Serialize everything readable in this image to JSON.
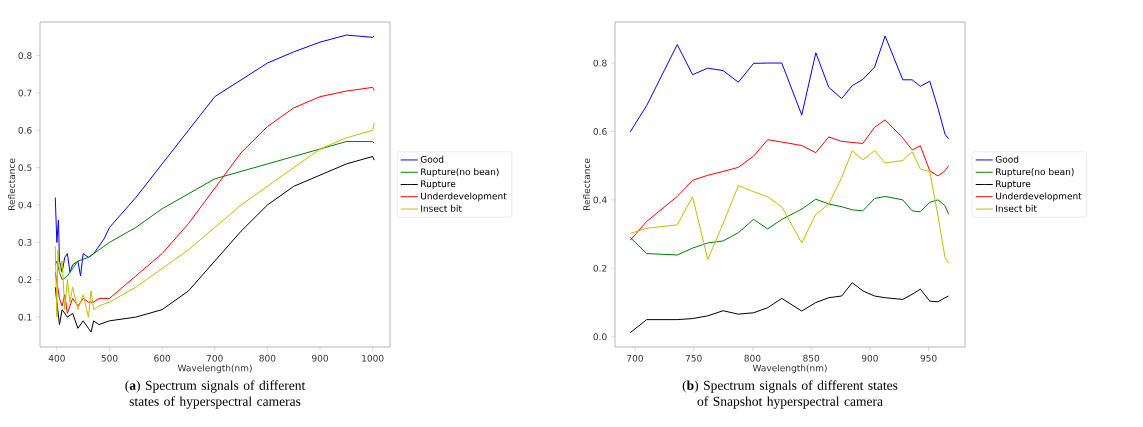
{
  "chart_data": [
    {
      "type": "line",
      "title": "(**a**) Spectrum signals of different states of hyperspectral cameras",
      "xlabel": "Wavelength(nm)",
      "ylabel": "Reflectance",
      "xlim": [
        368,
        1033
      ],
      "ylim": [
        0.02,
        0.89
      ],
      "xticks": [
        400,
        500,
        600,
        700,
        800,
        900,
        1000
      ],
      "yticks": [
        0.1,
        0.2,
        0.3,
        0.4,
        0.5,
        0.6,
        0.7,
        0.8
      ],
      "legend": "right",
      "grid": false,
      "series": [
        {
          "name": "Good",
          "color": "#0000ff",
          "x": [
            397,
            400,
            403,
            405,
            410,
            415,
            420,
            425,
            430,
            440,
            445,
            450,
            460,
            470,
            480,
            490,
            500,
            550,
            600,
            650,
            700,
            750,
            800,
            850,
            900,
            950,
            1000,
            1003
          ],
          "values": [
            0.42,
            0.3,
            0.36,
            0.25,
            0.22,
            0.26,
            0.27,
            0.22,
            0.24,
            0.25,
            0.21,
            0.27,
            0.26,
            0.27,
            0.29,
            0.31,
            0.34,
            0.42,
            0.51,
            0.6,
            0.69,
            0.735,
            0.78,
            0.81,
            0.836,
            0.855,
            0.849,
            0.853
          ]
        },
        {
          "name": "Rupture(no bean)",
          "color": "#008000",
          "x": [
            397,
            400,
            405,
            410,
            420,
            430,
            440,
            460,
            480,
            500,
            550,
            600,
            650,
            700,
            750,
            800,
            850,
            900,
            950,
            1000,
            1003
          ],
          "values": [
            0.24,
            0.25,
            0.22,
            0.2,
            0.21,
            0.23,
            0.25,
            0.26,
            0.28,
            0.3,
            0.34,
            0.39,
            0.43,
            0.47,
            0.49,
            0.51,
            0.53,
            0.55,
            0.57,
            0.57,
            0.565
          ]
        },
        {
          "name": "Rupture",
          "color": "#000000",
          "x": [
            397,
            400,
            405,
            410,
            420,
            430,
            440,
            450,
            460,
            465,
            470,
            480,
            500,
            550,
            600,
            650,
            700,
            750,
            800,
            850,
            900,
            950,
            1000,
            1003
          ],
          "values": [
            0.18,
            0.14,
            0.08,
            0.12,
            0.1,
            0.11,
            0.07,
            0.09,
            0.07,
            0.06,
            0.09,
            0.08,
            0.09,
            0.1,
            0.12,
            0.17,
            0.25,
            0.33,
            0.4,
            0.45,
            0.48,
            0.51,
            0.53,
            0.52
          ]
        },
        {
          "name": "Underdevelopment",
          "color": "#ff0000",
          "x": [
            397,
            400,
            405,
            410,
            415,
            420,
            425,
            430,
            440,
            450,
            460,
            470,
            480,
            500,
            550,
            600,
            650,
            700,
            750,
            800,
            850,
            900,
            950,
            1000,
            1003
          ],
          "values": [
            0.22,
            null,
            0.15,
            0.13,
            0.16,
            0.11,
            0.13,
            0.15,
            0.13,
            0.15,
            0.14,
            0.14,
            0.15,
            0.15,
            0.21,
            0.27,
            0.35,
            0.445,
            0.54,
            0.61,
            0.66,
            0.69,
            0.705,
            0.715,
            0.707
          ]
        },
        {
          "name": "Insect bit",
          "color": "#bfbf00",
          "x": [
            397,
            400,
            402,
            405,
            410,
            415,
            420,
            425,
            430,
            440,
            450,
            460,
            465,
            470,
            480,
            500,
            550,
            600,
            650,
            700,
            750,
            800,
            850,
            900,
            950,
            1000,
            1003
          ],
          "values": [
            0.29,
            0.1,
            0.28,
            0.22,
            0.25,
            0.12,
            0.2,
            0.14,
            0.18,
            0.12,
            0.16,
            0.1,
            0.17,
            0.12,
            0.13,
            0.14,
            0.18,
            0.23,
            0.28,
            0.34,
            0.4,
            0.45,
            0.5,
            0.55,
            0.58,
            0.6,
            0.62
          ]
        }
      ]
    },
    {
      "type": "line",
      "title": "(**b**) Spectrum signals of different states of Snapshot hyperspectral camera",
      "xlabel": "Wavelength(nm)",
      "ylabel": "Reflectance",
      "xlim": [
        683,
        981
      ],
      "ylim": [
        -0.03,
        0.92
      ],
      "xticks": [
        700,
        750,
        800,
        850,
        900,
        950
      ],
      "yticks": [
        {
          "value": 0,
          "label": "0.0"
        },
        {
          "value": 0.2,
          "label": "0.2"
        },
        {
          "value": 0.4,
          "label": "0.4"
        },
        {
          "value": 0.6,
          "label": "0.6"
        },
        {
          "value": 0.8,
          "label": "0.8"
        }
      ],
      "legend": "right",
      "grid": false,
      "x": [
        696,
        710,
        736,
        749,
        762,
        775,
        788,
        801,
        813,
        825,
        842,
        854,
        865,
        876,
        885,
        894,
        904,
        913,
        928,
        936,
        943,
        951,
        958,
        964,
        967
      ],
      "series": [
        {
          "name": "Good",
          "color": "#0000ff",
          "values": [
            0.599,
            0.676,
            0.854,
            0.766,
            0.785,
            0.778,
            0.744,
            0.799,
            0.8,
            0.8,
            0.648,
            0.83,
            0.729,
            0.696,
            0.734,
            0.752,
            0.788,
            0.879,
            0.751,
            0.751,
            0.732,
            0.747,
            0.668,
            0.592,
            0.578
          ]
        },
        {
          "name": "Rupture(no bean)",
          "color": "#008000",
          "values": [
            0.29,
            0.243,
            0.239,
            0.259,
            0.274,
            0.28,
            0.304,
            0.343,
            0.315,
            0.343,
            0.373,
            0.402,
            0.388,
            0.38,
            0.371,
            0.368,
            0.404,
            0.41,
            0.4,
            0.368,
            0.365,
            0.393,
            0.4,
            0.383,
            0.358
          ]
        },
        {
          "name": "Rupture",
          "color": "#000000",
          "values": [
            0.012,
            0.05,
            0.05,
            0.053,
            0.061,
            0.076,
            0.066,
            0.07,
            0.085,
            0.112,
            0.075,
            0.1,
            0.114,
            0.119,
            0.158,
            0.134,
            0.119,
            0.114,
            0.109,
            0.124,
            0.139,
            0.104,
            0.102,
            0.114,
            0.119
          ]
        },
        {
          "name": "Underdevelopment",
          "color": "#ff0000",
          "values": [
            0.282,
            0.337,
            0.41,
            0.457,
            0.472,
            0.483,
            0.495,
            0.528,
            0.576,
            0.569,
            0.559,
            0.538,
            0.584,
            0.571,
            0.568,
            0.565,
            0.612,
            0.634,
            0.581,
            0.546,
            0.558,
            0.485,
            0.47,
            0.485,
            0.5
          ]
        },
        {
          "name": "Insect bit",
          "color": "#bfbf00",
          "values": [
            0.302,
            0.317,
            0.327,
            0.409,
            0.226,
            0.33,
            0.442,
            0.424,
            0.409,
            0.38,
            0.274,
            0.358,
            0.388,
            0.465,
            0.544,
            0.517,
            0.544,
            0.508,
            0.515,
            0.541,
            0.49,
            0.483,
            0.353,
            0.231,
            0.216
          ]
        }
      ]
    }
  ]
}
